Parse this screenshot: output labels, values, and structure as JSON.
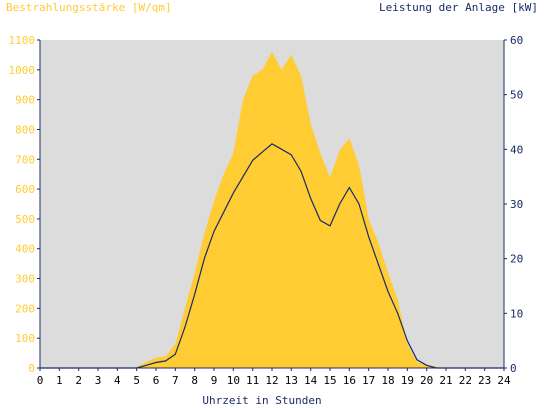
{
  "chart_data": {
    "type": "area",
    "title_left": "Bestrahlungsstärke [W/qm]",
    "title_right": "Leistung der Anlage [kW]",
    "xlabel": "Uhrzeit in Stunden",
    "xlim": [
      0,
      24
    ],
    "x_ticks": [
      "0",
      "1",
      "2",
      "3",
      "4",
      "5",
      "6",
      "7",
      "8",
      "9",
      "10",
      "11",
      "12",
      "13",
      "14",
      "15",
      "16",
      "17",
      "18",
      "19",
      "20",
      "21",
      "22",
      "23",
      "24"
    ],
    "y_left": {
      "lim": [
        0,
        1100
      ],
      "ticks": [
        "0",
        "100",
        "200",
        "300",
        "400",
        "500",
        "600",
        "700",
        "800",
        "900",
        "1000",
        "1100"
      ]
    },
    "y_right": {
      "lim": [
        0,
        60
      ],
      "ticks": [
        "0",
        "10",
        "20",
        "30",
        "40",
        "50",
        "60"
      ]
    },
    "grid": false,
    "colors": {
      "plot_bg": "#dcdcdc",
      "area": "#ffcc33",
      "line": "#1a2b66",
      "left_axis_text": "#ffcc33",
      "right_axis_text": "#1a2b66",
      "axis": "#1a2b66"
    },
    "series": [
      {
        "name": "Bestrahlungsstärke [W/qm]",
        "axis": "left",
        "x": [
          0,
          4.9,
          5.5,
          6.0,
          6.5,
          7.0,
          7.5,
          8.0,
          8.5,
          9.0,
          9.5,
          10.0,
          10.5,
          11.0,
          11.5,
          12.0,
          12.5,
          13.0,
          13.5,
          14.0,
          14.5,
          15.0,
          15.5,
          16.0,
          16.5,
          17.0,
          17.5,
          18.0,
          18.5,
          19.0,
          19.5,
          20.0,
          20.5,
          21.0,
          24
        ],
        "values": [
          0,
          0,
          20,
          35,
          40,
          80,
          200,
          320,
          450,
          560,
          650,
          720,
          900,
          980,
          1000,
          1060,
          1000,
          1050,
          980,
          820,
          720,
          640,
          730,
          770,
          680,
          500,
          420,
          320,
          230,
          80,
          20,
          10,
          5,
          0,
          0
        ]
      },
      {
        "name": "Leistung der Anlage [kW]",
        "axis": "right",
        "x": [
          0,
          5.0,
          5.5,
          6.0,
          6.5,
          7.0,
          7.5,
          8.0,
          8.5,
          9.0,
          9.5,
          10.0,
          10.5,
          11.0,
          11.5,
          12.0,
          12.5,
          13.0,
          13.5,
          14.0,
          14.5,
          15.0,
          15.5,
          16.0,
          16.5,
          17.0,
          17.5,
          18.0,
          18.5,
          19.0,
          19.5,
          20.0,
          20.5,
          24
        ],
        "values": [
          0,
          0,
          0.5,
          1.0,
          1.3,
          2.5,
          7.5,
          13.5,
          20,
          25,
          28.5,
          32,
          35,
          38,
          39.5,
          41,
          40,
          39,
          36,
          31,
          27,
          26,
          30,
          33,
          30,
          24,
          19,
          14,
          10,
          5,
          1.5,
          0.5,
          0,
          0
        ]
      }
    ]
  }
}
